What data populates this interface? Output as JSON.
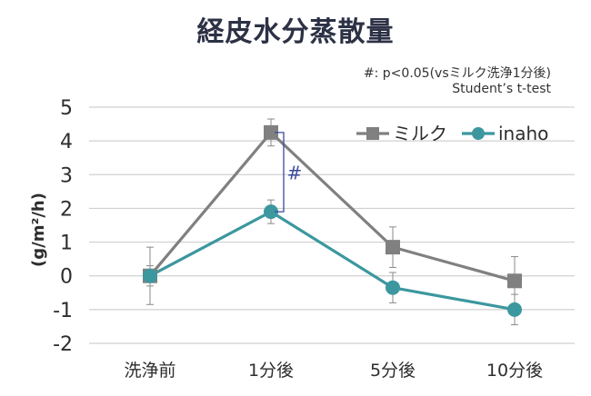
{
  "chart_data": {
    "type": "line",
    "title": "経皮水分蒸散量",
    "notes": [
      "#: p<0.05(vsミルク洗浄1分後)",
      "Student’s t-test"
    ],
    "ylabel": "(g/m²/h)",
    "xlabel": "",
    "categories": [
      "洗浄前",
      "1分後",
      "5分後",
      "10分後"
    ],
    "ylim": [
      -2,
      5
    ],
    "yticks": [
      "5",
      "4",
      "3",
      "2",
      "1",
      "0",
      "-1",
      "-2"
    ],
    "grid": true,
    "legend_position": "top-right",
    "series": [
      {
        "name": "ミルク",
        "marker": "square",
        "color": "#808080",
        "values": [
          0.0,
          4.25,
          0.85,
          -0.15
        ],
        "error": [
          0.85,
          0.4,
          0.6,
          0.72
        ]
      },
      {
        "name": "inaho",
        "marker": "circle",
        "color": "#3c979f",
        "values": [
          0.0,
          1.9,
          -0.35,
          -1.0
        ],
        "error": [
          0.3,
          0.35,
          0.45,
          0.45
        ]
      }
    ],
    "annotations": [
      {
        "text": "#",
        "category": "1分後",
        "between": [
          "ミルク",
          "inaho"
        ]
      }
    ]
  }
}
